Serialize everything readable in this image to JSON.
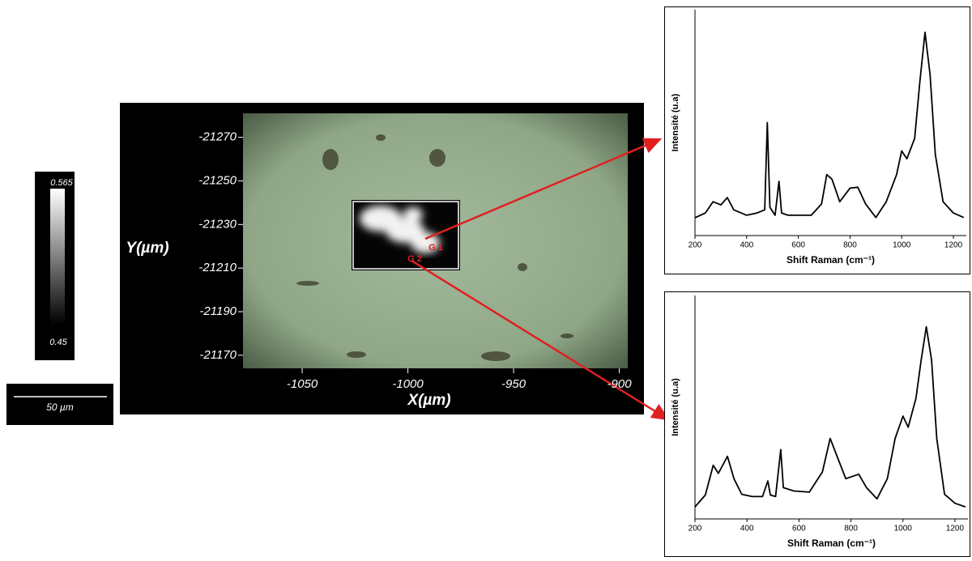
{
  "map": {
    "y_label": "Y(µm)",
    "x_label": "X(µm)",
    "xlim": [
      -1078,
      -896
    ],
    "xticks": [
      -1050,
      -1000,
      -950,
      -900
    ],
    "ylim": [
      -21281,
      -21164
    ],
    "yticks": [
      -21270,
      -21250,
      -21230,
      -21210,
      -21190,
      -21170
    ],
    "points": [
      "G 1",
      "G 2"
    ],
    "colorbar": {
      "max": 0.565,
      "min": 0.45
    },
    "scale_bar": "50 µm"
  },
  "chart_data": [
    {
      "type": "line",
      "x_label": "Shift Raman (cm⁻¹)",
      "y_label": "Intensité (u.a)",
      "color": "#000000",
      "xlim": [
        200,
        1250
      ],
      "xticks": [
        200,
        400,
        600,
        800,
        1000,
        1200
      ],
      "ylim": [
        0,
        100
      ],
      "x": [
        200,
        240,
        270,
        300,
        325,
        350,
        400,
        440,
        470,
        480,
        490,
        510,
        525,
        535,
        560,
        600,
        650,
        690,
        710,
        730,
        760,
        800,
        830,
        860,
        900,
        940,
        980,
        1000,
        1020,
        1050,
        1070,
        1090,
        1110,
        1130,
        1160,
        1200,
        1240
      ],
      "values": [
        7.9,
        10,
        15,
        13.6,
        16.8,
        11.4,
        9,
        10,
        11.4,
        50,
        12.5,
        9,
        24,
        10,
        9,
        9,
        9,
        14,
        27,
        25,
        15,
        21,
        21.4,
        14,
        8,
        15,
        27,
        37.5,
        34,
        43,
        68,
        90,
        71,
        36,
        15,
        10,
        8
      ]
    },
    {
      "type": "line",
      "x_label": "Shift Raman (cm⁻¹)",
      "y_label": "Intensité (u.a)",
      "color": "#000000",
      "xlim": [
        200,
        1250
      ],
      "xticks": [
        200,
        400,
        600,
        800,
        1000,
        1200
      ],
      "ylim": [
        0,
        100
      ],
      "x": [
        200,
        240,
        270,
        290,
        325,
        350,
        380,
        420,
        460,
        480,
        490,
        510,
        530,
        540,
        580,
        640,
        690,
        720,
        750,
        780,
        830,
        860,
        900,
        940,
        970,
        1000,
        1020,
        1050,
        1070,
        1090,
        1110,
        1130,
        1160,
        1200,
        1240
      ],
      "values": [
        5.4,
        10.7,
        24,
        20.4,
        28,
        18,
        11,
        10,
        10,
        17,
        10.7,
        10,
        31,
        14,
        12.5,
        12,
        21,
        36,
        27,
        18,
        20,
        14,
        9,
        18,
        36,
        46,
        41,
        54,
        71,
        86,
        71,
        36,
        11,
        7,
        5.4
      ]
    }
  ]
}
